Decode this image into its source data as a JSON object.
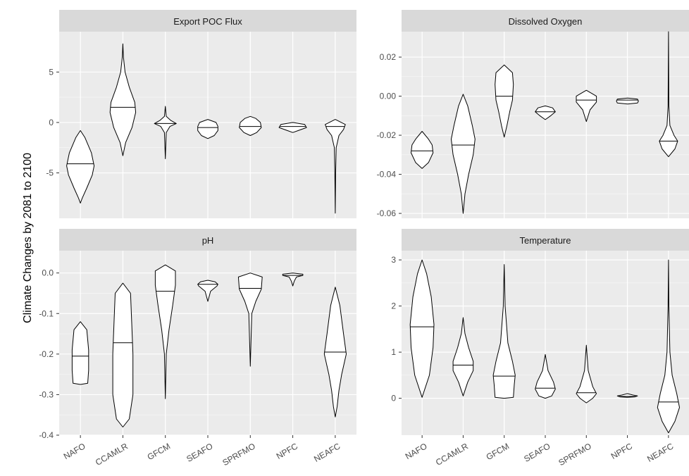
{
  "figure": {
    "ylabel": "Climate Changes by 2081 to 2100",
    "colors": {
      "panel_bg": "#ebebeb",
      "strip_bg": "#d9d9d9",
      "grid": "#ffffff",
      "violin_fill": "#ffffff",
      "violin_stroke": "#000000",
      "axis_text": "#4d4d4d"
    }
  },
  "chart_data": [
    {
      "type": "violin",
      "title": "Export POC Flux",
      "categories": [
        "NAFO",
        "CCAMLR",
        "GFCM",
        "SEAFO",
        "SPRFMO",
        "NPFC",
        "NEAFC"
      ],
      "yticks": [
        5,
        0,
        -5
      ],
      "ytick_labels": [
        "5",
        "0",
        "-5"
      ],
      "ylim": [
        -9.5,
        9
      ],
      "grid": true,
      "medians": [
        -4.1,
        1.5,
        -0.1,
        -0.5,
        -0.4,
        -0.4,
        -0.4
      ],
      "violins": [
        {
          "profile": [
            [
              -8,
              0
            ],
            [
              -7.5,
              0.1
            ],
            [
              -6.5,
              0.35
            ],
            [
              -5.2,
              0.65
            ],
            [
              -4.3,
              0.75
            ],
            [
              -3,
              0.6
            ],
            [
              -1.5,
              0.25
            ],
            [
              -0.8,
              0
            ]
          ]
        },
        {
          "profile": [
            [
              -3.3,
              0
            ],
            [
              -2,
              0.15
            ],
            [
              -0.5,
              0.5
            ],
            [
              1,
              0.7
            ],
            [
              2,
              0.65
            ],
            [
              3.5,
              0.35
            ],
            [
              5,
              0.12
            ],
            [
              6.5,
              0.03
            ],
            [
              7.8,
              0
            ]
          ]
        },
        {
          "profile": [
            [
              -3.6,
              0
            ],
            [
              -1,
              0.05
            ],
            [
              -0.4,
              0.25
            ],
            [
              -0.1,
              0.6
            ],
            [
              0.2,
              0.3
            ],
            [
              0.6,
              0.05
            ],
            [
              1.6,
              0
            ]
          ]
        },
        {
          "profile": [
            [
              -1.6,
              0
            ],
            [
              -1.3,
              0.35
            ],
            [
              -0.8,
              0.55
            ],
            [
              -0.4,
              0.55
            ],
            [
              0,
              0.45
            ],
            [
              0.3,
              0
            ]
          ]
        },
        {
          "profile": [
            [
              -1.3,
              0
            ],
            [
              -1,
              0.35
            ],
            [
              -0.5,
              0.6
            ],
            [
              0,
              0.55
            ],
            [
              0.4,
              0.3
            ],
            [
              0.6,
              0
            ]
          ]
        },
        {
          "profile": [
            [
              -1,
              0
            ],
            [
              -0.8,
              0.3
            ],
            [
              -0.5,
              0.75
            ],
            [
              -0.2,
              0.65
            ],
            [
              0,
              0
            ]
          ]
        },
        {
          "profile": [
            [
              -9,
              0
            ],
            [
              -5,
              0.02
            ],
            [
              -2.5,
              0.05
            ],
            [
              -1.3,
              0.2
            ],
            [
              -0.7,
              0.45
            ],
            [
              -0.2,
              0.55
            ],
            [
              0.3,
              0
            ]
          ]
        }
      ]
    },
    {
      "type": "violin",
      "title": "Dissolved Oxygen",
      "categories": [
        "NAFO",
        "CCAMLR",
        "GFCM",
        "SEAFO",
        "SPRFMO",
        "NPFC",
        "NEAFC"
      ],
      "yticks": [
        0.02,
        0,
        -0.02,
        -0.04,
        -0.06
      ],
      "ytick_labels": [
        "0.02",
        "0.00",
        "-0.02",
        "-0.04",
        "-0.06"
      ],
      "ylim": [
        -0.0625,
        0.033
      ],
      "grid": true,
      "medians": [
        -0.028,
        -0.025,
        0.0,
        -0.008,
        -0.002,
        -0.002,
        -0.023
      ],
      "violins": [
        {
          "profile": [
            [
              -0.037,
              0
            ],
            [
              -0.034,
              0.35
            ],
            [
              -0.029,
              0.6
            ],
            [
              -0.025,
              0.55
            ],
            [
              -0.022,
              0.35
            ],
            [
              -0.018,
              0
            ]
          ]
        },
        {
          "profile": [
            [
              -0.06,
              0
            ],
            [
              -0.05,
              0.1
            ],
            [
              -0.04,
              0.3
            ],
            [
              -0.03,
              0.55
            ],
            [
              -0.022,
              0.65
            ],
            [
              -0.015,
              0.5
            ],
            [
              -0.005,
              0.25
            ],
            [
              0.001,
              0
            ]
          ]
        },
        {
          "profile": [
            [
              -0.021,
              0
            ],
            [
              -0.015,
              0.15
            ],
            [
              -0.008,
              0.3
            ],
            [
              -0.002,
              0.45
            ],
            [
              0.006,
              0.5
            ],
            [
              0.012,
              0.45
            ],
            [
              0.016,
              0
            ]
          ]
        },
        {
          "profile": [
            [
              -0.012,
              0
            ],
            [
              -0.01,
              0.3
            ],
            [
              -0.008,
              0.55
            ],
            [
              -0.006,
              0.4
            ],
            [
              -0.005,
              0
            ]
          ]
        },
        {
          "profile": [
            [
              -0.013,
              0
            ],
            [
              -0.007,
              0.2
            ],
            [
              -0.003,
              0.55
            ],
            [
              0,
              0.55
            ],
            [
              0.003,
              0
            ]
          ]
        },
        {
          "profile": [
            [
              -0.004,
              0
            ],
            [
              -0.0035,
              0.55
            ],
            [
              -0.0025,
              0.6
            ],
            [
              -0.0015,
              0.55
            ],
            [
              -0.001,
              0
            ]
          ]
        },
        {
          "profile": [
            [
              -0.031,
              0
            ],
            [
              -0.027,
              0.35
            ],
            [
              -0.023,
              0.5
            ],
            [
              -0.02,
              0.3
            ],
            [
              -0.015,
              0.08
            ],
            [
              -0.005,
              0.02
            ],
            [
              0.033,
              0
            ]
          ]
        }
      ]
    },
    {
      "type": "violin",
      "title": "pH",
      "categories": [
        "NAFO",
        "CCAMLR",
        "GFCM",
        "SEAFO",
        "SPRFMO",
        "NPFC",
        "NEAFC"
      ],
      "yticks": [
        0.0,
        -0.1,
        -0.2,
        -0.3,
        -0.4
      ],
      "ytick_labels": [
        "0.0",
        "-0.1",
        "-0.2",
        "-0.3",
        "-0.4"
      ],
      "ylim": [
        -0.4,
        0.055
      ],
      "grid": true,
      "medians": [
        -0.205,
        -0.172,
        -0.045,
        -0.028,
        -0.038,
        -0.006,
        -0.195
      ],
      "violins": [
        {
          "profile": [
            [
              -0.275,
              0
            ],
            [
              -0.272,
              0.4
            ],
            [
              -0.24,
              0.45
            ],
            [
              -0.19,
              0.45
            ],
            [
              -0.14,
              0.35
            ],
            [
              -0.12,
              0
            ]
          ]
        },
        {
          "profile": [
            [
              -0.38,
              0
            ],
            [
              -0.36,
              0.35
            ],
            [
              -0.3,
              0.55
            ],
            [
              -0.25,
              0.55
            ],
            [
              -0.2,
              0.55
            ],
            [
              -0.12,
              0.48
            ],
            [
              -0.05,
              0.42
            ],
            [
              -0.025,
              0
            ]
          ]
        },
        {
          "profile": [
            [
              -0.31,
              0
            ],
            [
              -0.2,
              0.05
            ],
            [
              -0.14,
              0.2
            ],
            [
              -0.08,
              0.4
            ],
            [
              -0.03,
              0.55
            ],
            [
              0.005,
              0.55
            ],
            [
              0.02,
              0
            ]
          ]
        },
        {
          "profile": [
            [
              -0.07,
              0
            ],
            [
              -0.045,
              0.15
            ],
            [
              -0.032,
              0.5
            ],
            [
              -0.028,
              0.55
            ],
            [
              -0.022,
              0.4
            ],
            [
              -0.018,
              0
            ]
          ]
        },
        {
          "profile": [
            [
              -0.23,
              0
            ],
            [
              -0.1,
              0.08
            ],
            [
              -0.07,
              0.3
            ],
            [
              -0.04,
              0.6
            ],
            [
              -0.01,
              0.65
            ],
            [
              0.0,
              0
            ]
          ]
        },
        {
          "profile": [
            [
              -0.032,
              0
            ],
            [
              -0.02,
              0.08
            ],
            [
              -0.01,
              0.2
            ],
            [
              -0.006,
              0.55
            ],
            [
              -0.003,
              0.55
            ],
            [
              0.0,
              0
            ]
          ]
        },
        {
          "profile": [
            [
              -0.355,
              0
            ],
            [
              -0.33,
              0.1
            ],
            [
              -0.29,
              0.2
            ],
            [
              -0.25,
              0.35
            ],
            [
              -0.2,
              0.6
            ],
            [
              -0.15,
              0.45
            ],
            [
              -0.08,
              0.25
            ],
            [
              -0.035,
              0
            ]
          ]
        }
      ]
    },
    {
      "type": "violin",
      "title": "Temperature",
      "categories": [
        "NAFO",
        "CCAMLR",
        "GFCM",
        "SEAFO",
        "SPRFMO",
        "NPFC",
        "NEAFC"
      ],
      "yticks": [
        3,
        2,
        1,
        0
      ],
      "ytick_labels": [
        "3",
        "2",
        "1",
        "0"
      ],
      "ylim": [
        -0.8,
        3.2
      ],
      "grid": true,
      "medians": [
        1.55,
        0.72,
        0.48,
        0.22,
        0.12,
        0.04,
        -0.08
      ],
      "violins": [
        {
          "profile": [
            [
              0.02,
              0
            ],
            [
              0.5,
              0.4
            ],
            [
              1.1,
              0.6
            ],
            [
              1.6,
              0.65
            ],
            [
              2.2,
              0.5
            ],
            [
              2.7,
              0.25
            ],
            [
              3.0,
              0
            ]
          ]
        },
        {
          "profile": [
            [
              0.05,
              0
            ],
            [
              0.35,
              0.25
            ],
            [
              0.6,
              0.55
            ],
            [
              0.8,
              0.55
            ],
            [
              1.1,
              0.3
            ],
            [
              1.4,
              0.1
            ],
            [
              1.75,
              0
            ]
          ]
        },
        {
          "profile": [
            [
              0.0,
              0
            ],
            [
              0.02,
              0.5
            ],
            [
              0.3,
              0.55
            ],
            [
              0.5,
              0.6
            ],
            [
              0.8,
              0.45
            ],
            [
              1.2,
              0.2
            ],
            [
              2.0,
              0.05
            ],
            [
              2.9,
              0
            ]
          ]
        },
        {
          "profile": [
            [
              0.0,
              0
            ],
            [
              0.05,
              0.35
            ],
            [
              0.2,
              0.55
            ],
            [
              0.35,
              0.45
            ],
            [
              0.6,
              0.15
            ],
            [
              0.95,
              0
            ]
          ]
        },
        {
          "profile": [
            [
              -0.1,
              0
            ],
            [
              0.0,
              0.35
            ],
            [
              0.1,
              0.55
            ],
            [
              0.25,
              0.35
            ],
            [
              0.6,
              0.1
            ],
            [
              1.15,
              0
            ]
          ]
        },
        {
          "profile": [
            [
              0.02,
              0
            ],
            [
              0.03,
              0.4
            ],
            [
              0.05,
              0.55
            ],
            [
              0.07,
              0.3
            ],
            [
              0.1,
              0
            ]
          ]
        },
        {
          "profile": [
            [
              -0.75,
              0
            ],
            [
              -0.5,
              0.35
            ],
            [
              -0.2,
              0.6
            ],
            [
              0.1,
              0.45
            ],
            [
              0.5,
              0.2
            ],
            [
              1.0,
              0.08
            ],
            [
              2.0,
              0.02
            ],
            [
              3.0,
              0
            ]
          ]
        }
      ]
    }
  ]
}
